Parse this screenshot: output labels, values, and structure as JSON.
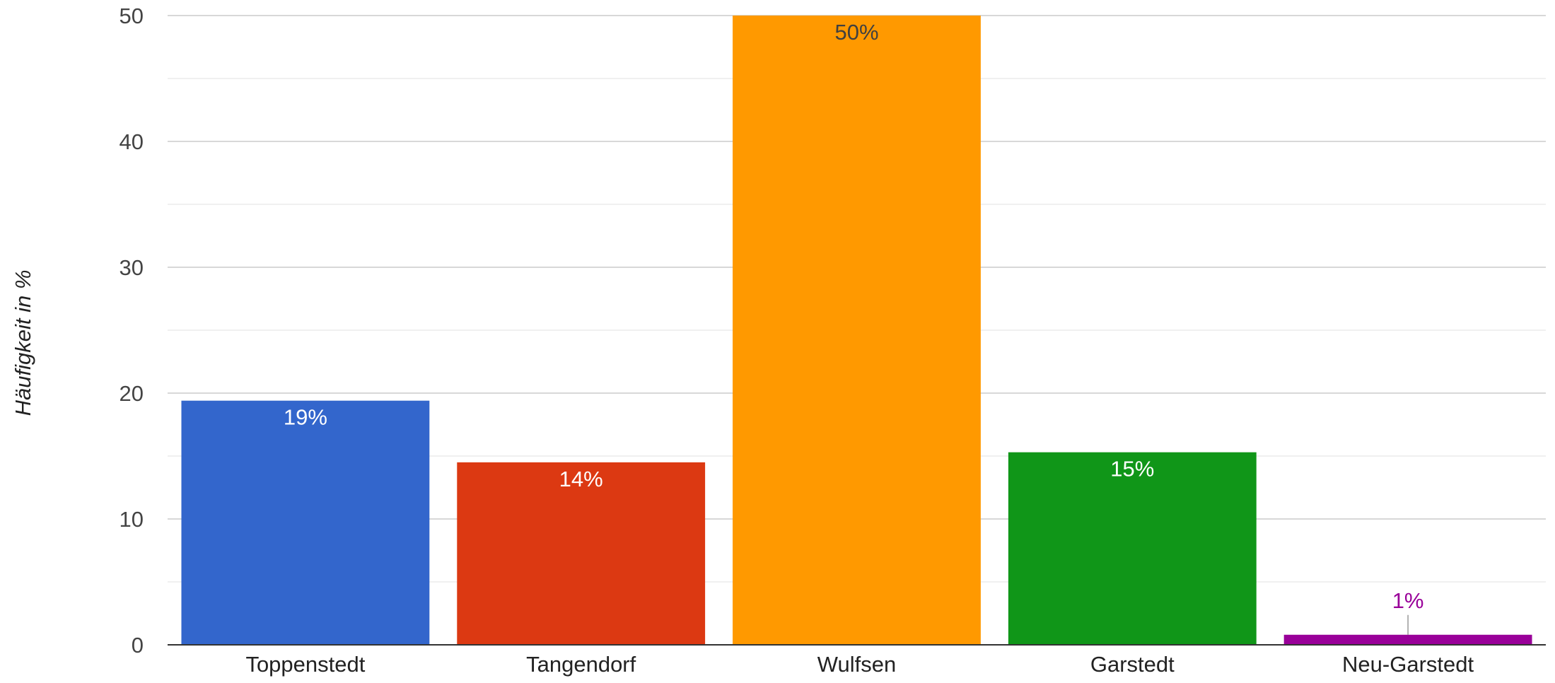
{
  "chart_data": {
    "type": "bar",
    "title": "",
    "xlabel": "",
    "ylabel": "Häufigkeit in %",
    "ylim": [
      0,
      50
    ],
    "yticks": [
      0,
      10,
      20,
      30,
      40,
      50
    ],
    "grid": true,
    "categories": [
      "Toppenstedt",
      "Tangendorf",
      "Wulfsen",
      "Garstedt",
      "Neu-Garstedt"
    ],
    "values": [
      19.4,
      14.5,
      50.0,
      15.3,
      0.8
    ],
    "data_labels": [
      "19%",
      "14%",
      "50%",
      "15%",
      "1%"
    ],
    "colors": [
      "#3366cc",
      "#dc3912",
      "#ff9900",
      "#109618",
      "#990099"
    ],
    "label_colors": [
      "#ffffff",
      "#ffffff",
      "#404040",
      "#ffffff",
      "#990099"
    ],
    "outside_label_index": 4
  }
}
